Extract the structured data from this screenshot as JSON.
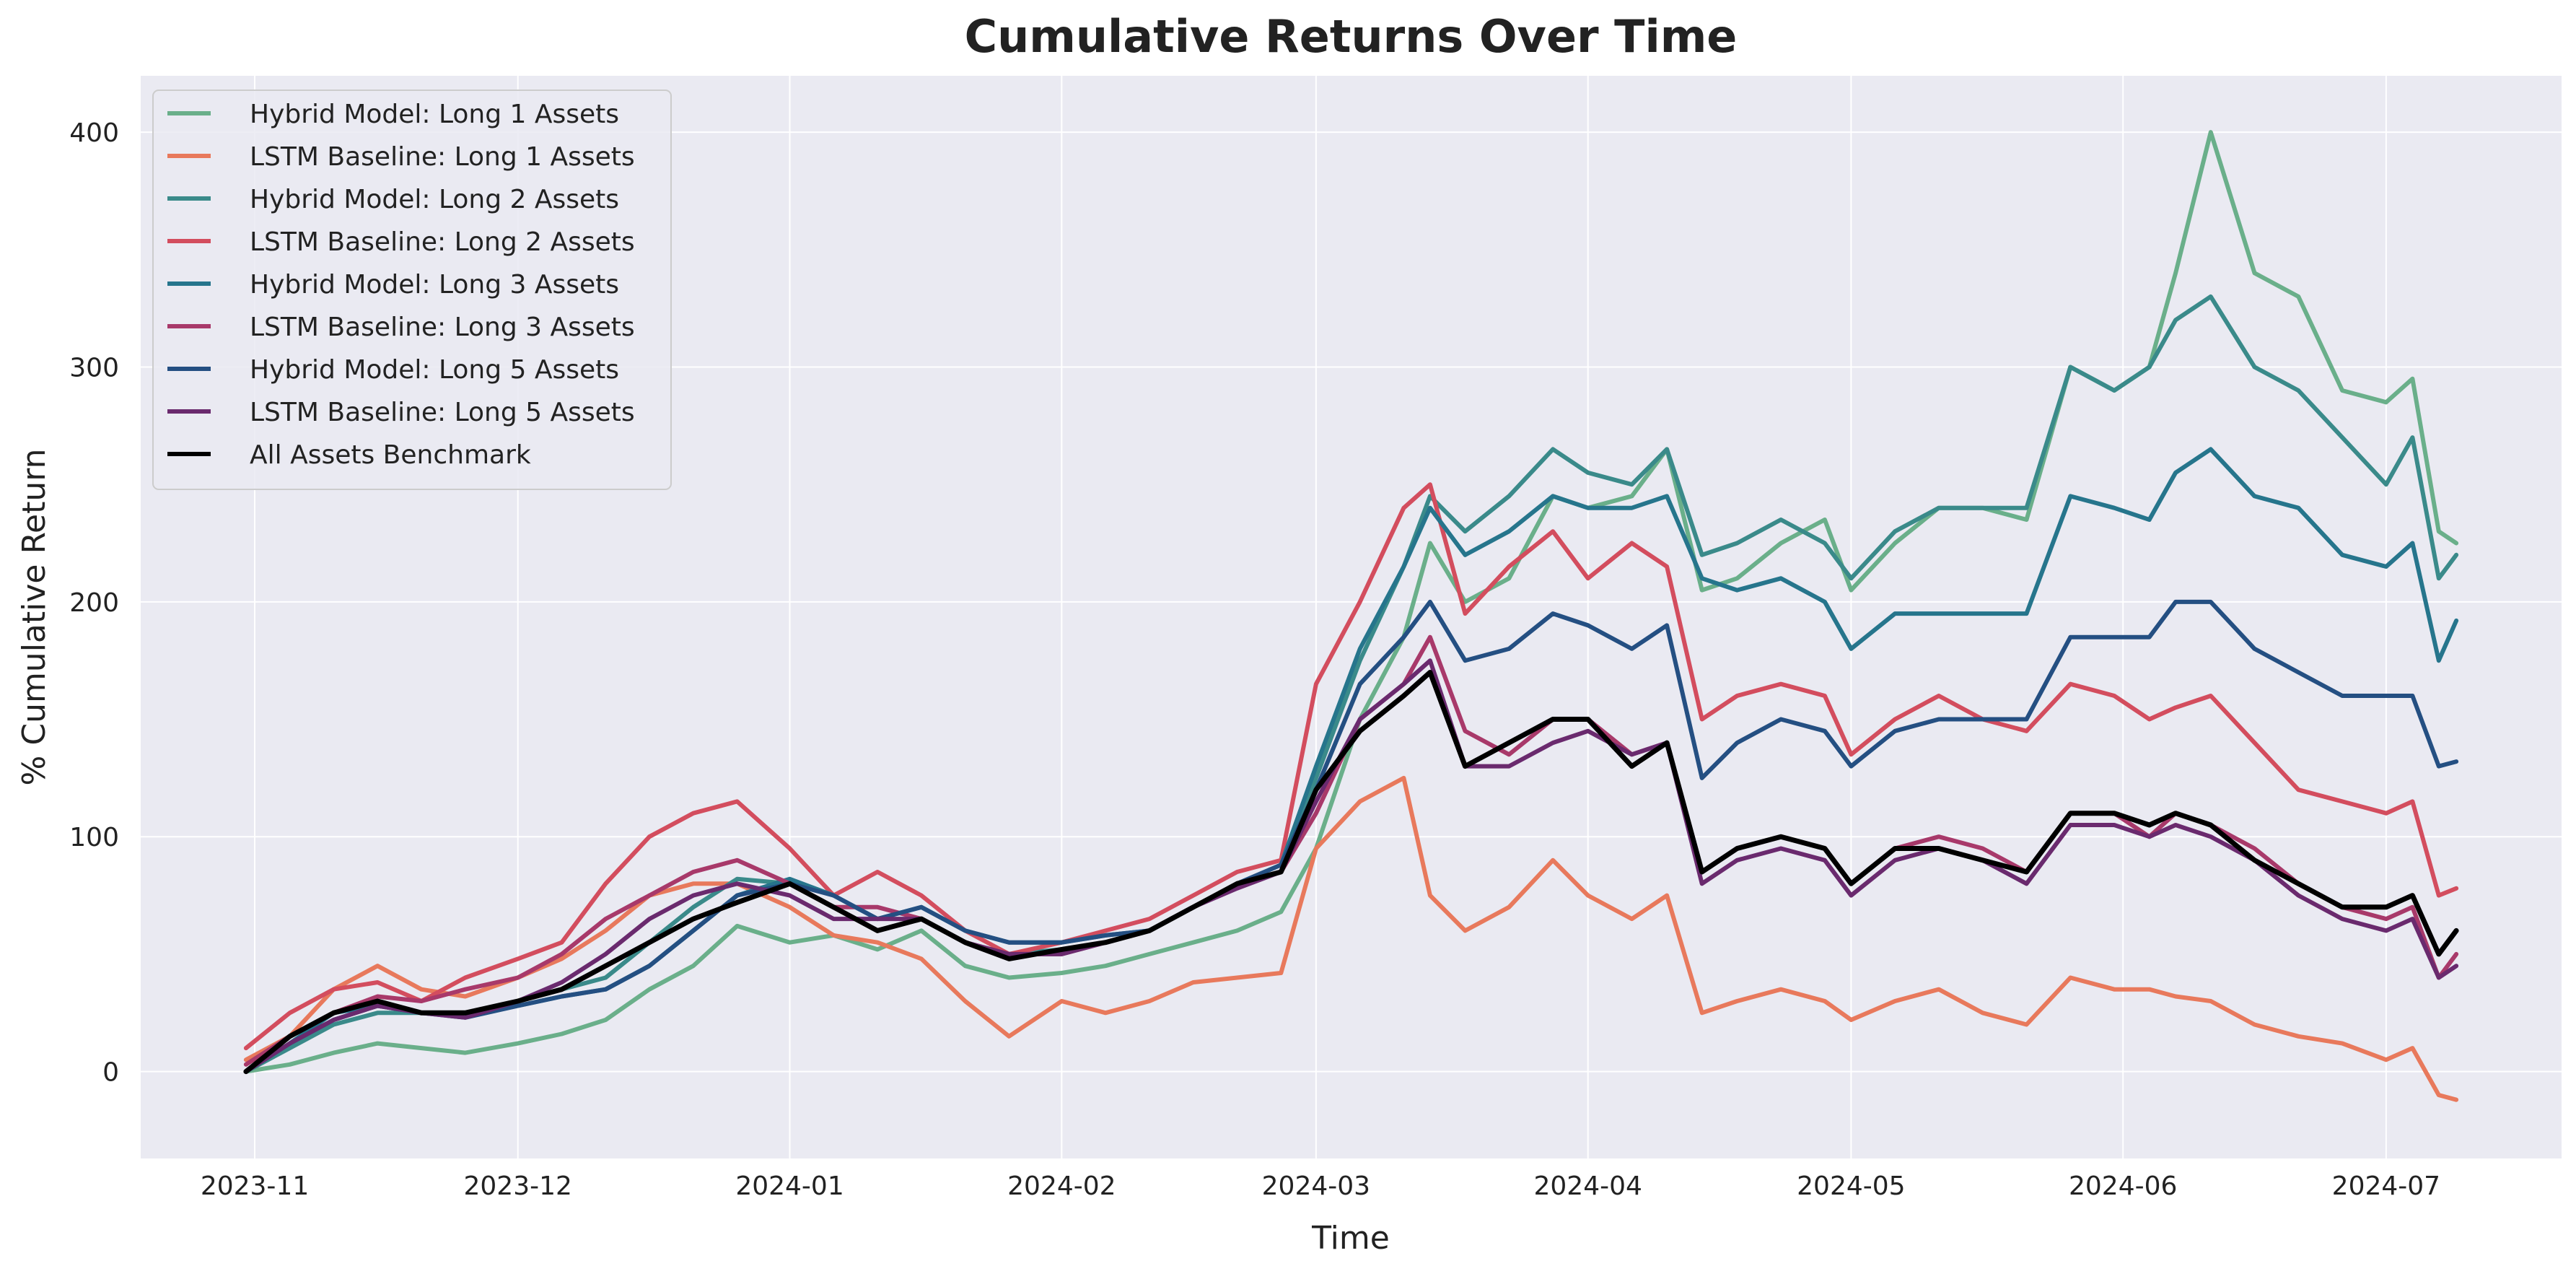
{
  "chart_data": {
    "type": "line",
    "title": "Cumulative Returns Over Time",
    "xlabel": "Time",
    "ylabel": "% Cumulative Return",
    "x_ticks": [
      "2023-11-01",
      "2023-12-01",
      "2024-01-01",
      "2024-02-01",
      "2024-03-01",
      "2024-04-01",
      "2024-05-01",
      "2024-06-01",
      "2024-07-01"
    ],
    "x_tick_labels": [
      "2023-11",
      "2023-12",
      "2024-01",
      "2024-02",
      "2024-03",
      "2024-04",
      "2024-05",
      "2024-06",
      "2024-07"
    ],
    "y_ticks": [
      0,
      100,
      200,
      300,
      400
    ],
    "xlim": [
      "2023-10-19",
      "2024-07-21"
    ],
    "ylim": [
      -37,
      424
    ],
    "grid": true,
    "legend_position": "upper-left",
    "x": [
      "2023-10-31",
      "2023-11-05",
      "2023-11-10",
      "2023-11-15",
      "2023-11-20",
      "2023-11-25",
      "2023-12-01",
      "2023-12-06",
      "2023-12-11",
      "2023-12-16",
      "2023-12-21",
      "2023-12-26",
      "2024-01-01",
      "2024-01-06",
      "2024-01-11",
      "2024-01-16",
      "2024-01-21",
      "2024-01-26",
      "2024-02-01",
      "2024-02-06",
      "2024-02-11",
      "2024-02-16",
      "2024-02-21",
      "2024-02-26",
      "2024-03-01",
      "2024-03-06",
      "2024-03-11",
      "2024-03-14",
      "2024-03-18",
      "2024-03-23",
      "2024-03-28",
      "2024-04-01",
      "2024-04-06",
      "2024-04-10",
      "2024-04-14",
      "2024-04-18",
      "2024-04-23",
      "2024-04-28",
      "2024-05-01",
      "2024-05-06",
      "2024-05-11",
      "2024-05-16",
      "2024-05-21",
      "2024-05-26",
      "2024-05-31",
      "2024-06-04",
      "2024-06-07",
      "2024-06-11",
      "2024-06-16",
      "2024-06-21",
      "2024-06-26",
      "2024-07-01",
      "2024-07-04",
      "2024-07-07",
      "2024-07-09"
    ],
    "series": [
      {
        "name": "Hybrid Model: Long 1 Assets",
        "color": "#6aaf8a",
        "values": [
          0,
          3,
          8,
          12,
          10,
          8,
          12,
          16,
          22,
          35,
          45,
          62,
          55,
          58,
          52,
          60,
          45,
          40,
          42,
          45,
          50,
          55,
          60,
          68,
          95,
          150,
          185,
          225,
          200,
          210,
          245,
          240,
          245,
          265,
          205,
          210,
          225,
          235,
          205,
          225,
          240,
          240,
          235,
          300,
          290,
          300,
          340,
          400,
          340,
          330,
          290,
          285,
          295,
          230,
          225
        ]
      },
      {
        "name": "LSTM Baseline: Long 1 Assets",
        "color": "#e8795c",
        "values": [
          5,
          15,
          35,
          45,
          35,
          32,
          40,
          48,
          60,
          75,
          80,
          80,
          70,
          58,
          55,
          48,
          30,
          15,
          30,
          25,
          30,
          38,
          40,
          42,
          95,
          115,
          125,
          75,
          60,
          70,
          90,
          75,
          65,
          75,
          25,
          30,
          35,
          30,
          22,
          30,
          35,
          25,
          20,
          40,
          35,
          35,
          32,
          30,
          20,
          15,
          12,
          5,
          10,
          -10,
          -12
        ]
      },
      {
        "name": "Hybrid Model: Long 2 Assets",
        "color": "#3a8a8a",
        "values": [
          0,
          10,
          20,
          25,
          25,
          25,
          30,
          35,
          40,
          55,
          70,
          82,
          80,
          70,
          60,
          65,
          55,
          50,
          52,
          55,
          60,
          70,
          80,
          85,
          125,
          175,
          215,
          245,
          230,
          245,
          265,
          255,
          250,
          265,
          220,
          225,
          235,
          225,
          210,
          230,
          240,
          240,
          240,
          300,
          290,
          300,
          320,
          330,
          300,
          290,
          270,
          250,
          270,
          210,
          220
        ]
      },
      {
        "name": "LSTM Baseline: Long 2 Assets",
        "color": "#d34d5e",
        "values": [
          10,
          25,
          35,
          38,
          30,
          40,
          48,
          55,
          80,
          100,
          110,
          115,
          95,
          75,
          85,
          75,
          60,
          50,
          55,
          60,
          65,
          75,
          85,
          90,
          165,
          200,
          240,
          250,
          195,
          215,
          230,
          210,
          225,
          215,
          150,
          160,
          165,
          160,
          135,
          150,
          160,
          150,
          145,
          165,
          160,
          150,
          155,
          160,
          140,
          120,
          115,
          110,
          115,
          75,
          78
        ]
      },
      {
        "name": "Hybrid Model: Long 3 Assets",
        "color": "#26758c",
        "values": [
          0,
          12,
          25,
          28,
          25,
          25,
          28,
          32,
          35,
          45,
          60,
          75,
          82,
          75,
          65,
          70,
          60,
          55,
          55,
          58,
          60,
          70,
          80,
          88,
          130,
          180,
          215,
          240,
          220,
          230,
          245,
          240,
          240,
          245,
          210,
          205,
          210,
          200,
          180,
          195,
          195,
          195,
          195,
          245,
          240,
          235,
          255,
          265,
          245,
          240,
          220,
          215,
          225,
          175,
          192
        ]
      },
      {
        "name": "LSTM Baseline: Long 3 Assets",
        "color": "#a8396a",
        "values": [
          3,
          15,
          25,
          32,
          30,
          35,
          40,
          50,
          65,
          75,
          85,
          90,
          80,
          70,
          70,
          65,
          55,
          50,
          50,
          55,
          60,
          70,
          80,
          85,
          110,
          150,
          165,
          185,
          145,
          135,
          150,
          150,
          135,
          140,
          85,
          95,
          100,
          95,
          80,
          95,
          100,
          95,
          85,
          110,
          110,
          100,
          110,
          105,
          95,
          80,
          70,
          65,
          70,
          40,
          50
        ]
      },
      {
        "name": "Hybrid Model: Long 5 Assets",
        "color": "#244f82",
        "values": [
          0,
          12,
          22,
          28,
          25,
          23,
          28,
          32,
          35,
          45,
          60,
          75,
          80,
          75,
          65,
          70,
          60,
          55,
          55,
          58,
          60,
          70,
          80,
          88,
          120,
          165,
          185,
          200,
          175,
          180,
          195,
          190,
          180,
          190,
          125,
          140,
          150,
          145,
          130,
          145,
          150,
          150,
          150,
          185,
          185,
          185,
          200,
          200,
          180,
          170,
          160,
          160,
          160,
          130,
          132
        ]
      },
      {
        "name": "LSTM Baseline: Long 5 Assets",
        "color": "#6a2a6e",
        "values": [
          0,
          12,
          22,
          28,
          25,
          23,
          30,
          38,
          50,
          65,
          75,
          80,
          75,
          65,
          65,
          65,
          55,
          50,
          50,
          55,
          60,
          70,
          78,
          85,
          115,
          150,
          165,
          175,
          130,
          130,
          140,
          145,
          135,
          140,
          80,
          90,
          95,
          90,
          75,
          90,
          95,
          90,
          80,
          105,
          105,
          100,
          105,
          100,
          90,
          75,
          65,
          60,
          65,
          40,
          45
        ]
      },
      {
        "name": "All Assets Benchmark",
        "color": "#000000",
        "values": [
          0,
          15,
          25,
          30,
          25,
          25,
          30,
          35,
          45,
          55,
          65,
          72,
          80,
          70,
          60,
          65,
          55,
          48,
          52,
          55,
          60,
          70,
          80,
          85,
          120,
          145,
          160,
          170,
          130,
          140,
          150,
          150,
          130,
          140,
          85,
          95,
          100,
          95,
          80,
          95,
          95,
          90,
          85,
          110,
          110,
          105,
          110,
          105,
          90,
          80,
          70,
          70,
          75,
          50,
          60
        ]
      }
    ]
  }
}
